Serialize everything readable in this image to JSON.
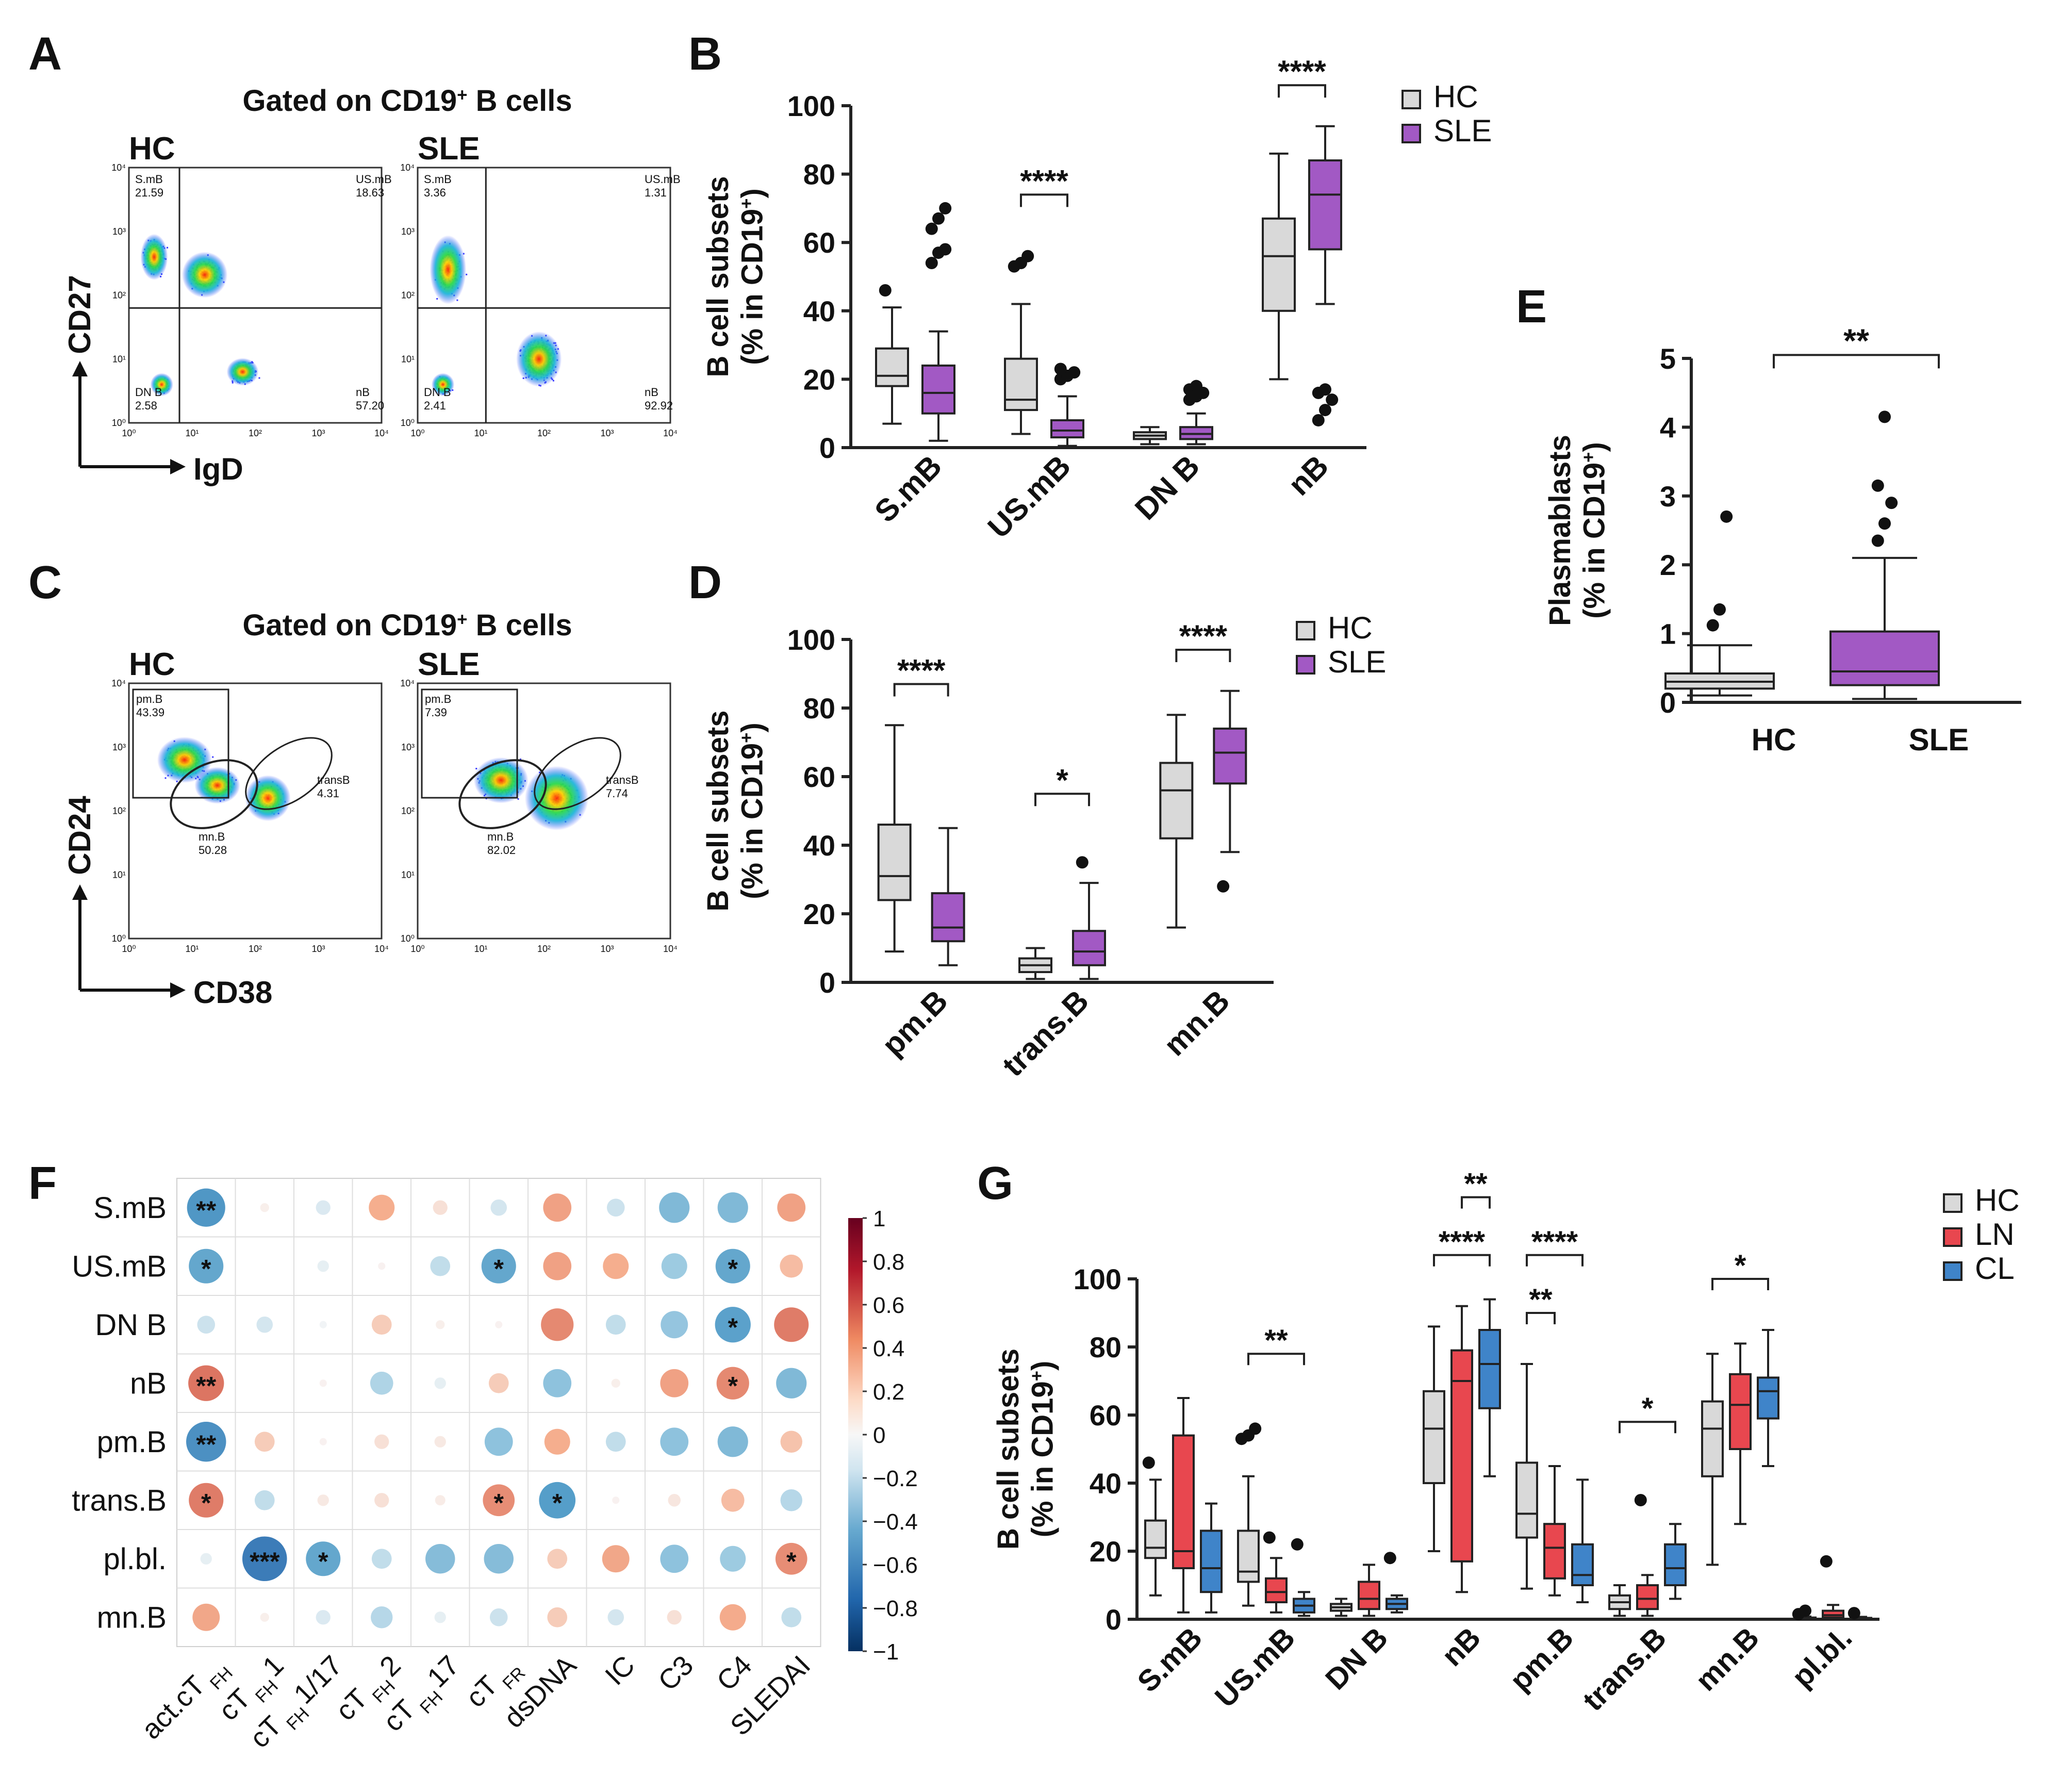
{
  "panel_letters": [
    "A",
    "B",
    "C",
    "D",
    "E",
    "F",
    "G"
  ],
  "colors": {
    "hc": "#d9d9d9",
    "sle": "#a259c4",
    "ln": "#e8474f",
    "cl": "#3f84c9",
    "axis": "#222222",
    "dot": "#111111"
  },
  "chart_data": [
    {
      "panel": "A",
      "type": "scatter",
      "title": "Gated on CD19",
      "title_sup": "+",
      "title_tail": " B cells",
      "xlabel": "IgD",
      "ylabel": "CD27",
      "ticks": [
        "10⁰",
        "10¹",
        "10²",
        "10³",
        "10⁴"
      ],
      "plots": [
        {
          "name": "HC",
          "quadrants": [
            {
              "label": "S.mB",
              "value": "21.59"
            },
            {
              "label": "US.mB",
              "value": "18.63"
            },
            {
              "label": "DN B",
              "value": "2.58"
            },
            {
              "label": "nB",
              "value": "57.20"
            }
          ]
        },
        {
          "name": "SLE",
          "quadrants": [
            {
              "label": "S.mB",
              "value": "3.36"
            },
            {
              "label": "US.mB",
              "value": "1.31"
            },
            {
              "label": "DN B",
              "value": "2.41"
            },
            {
              "label": "nB",
              "value": "92.92"
            }
          ]
        }
      ]
    },
    {
      "panel": "C",
      "type": "scatter",
      "title": "Gated on CD19",
      "title_sup": "+",
      "title_tail": " B cells",
      "xlabel": "CD38",
      "ylabel": "CD24",
      "ticks": [
        "10⁰",
        "10¹",
        "10²",
        "10³",
        "10⁴"
      ],
      "plots": [
        {
          "name": "HC",
          "gates": [
            {
              "label": "pm.B",
              "value": "43.39"
            },
            {
              "label": "transB",
              "value": "4.31"
            },
            {
              "label": "mn.B",
              "value": "50.28"
            }
          ]
        },
        {
          "name": "SLE",
          "gates": [
            {
              "label": "pm.B",
              "value": "7.39"
            },
            {
              "label": "transB",
              "value": "7.74"
            },
            {
              "label": "mn.B",
              "value": "82.02"
            }
          ]
        }
      ]
    },
    {
      "panel": "B",
      "type": "box",
      "ylabel": "B cell subsets",
      "ylabel2": "(% in CD19",
      "ylabel_sup": "+",
      "ylabel_tail": ")",
      "ylim": [
        0,
        100
      ],
      "yticks": [
        0,
        20,
        40,
        60,
        80,
        100
      ],
      "categories": [
        "S.mB",
        "US.mB",
        "DN B",
        "nB"
      ],
      "legend": [
        "HC",
        "SLE"
      ],
      "series": [
        {
          "name": "HC",
          "boxes": [
            {
              "min": 7,
              "q1": 18,
              "med": 21,
              "q3": 29,
              "max": 41,
              "out": [
                46
              ]
            },
            {
              "min": 4,
              "q1": 11,
              "med": 14,
              "q3": 26,
              "max": 42,
              "out": [
                53,
                54,
                56
              ]
            },
            {
              "min": 1,
              "q1": 2.5,
              "med": 3.5,
              "q3": 4.5,
              "max": 6,
              "out": []
            },
            {
              "min": 20,
              "q1": 40,
              "med": 56,
              "q3": 67,
              "max": 86,
              "out": []
            }
          ]
        },
        {
          "name": "SLE",
          "boxes": [
            {
              "min": 2,
              "q1": 10,
              "med": 16,
              "q3": 24,
              "max": 34,
              "out": [
                54,
                57,
                58,
                64,
                67,
                70
              ]
            },
            {
              "min": 0.5,
              "q1": 3,
              "med": 5,
              "q3": 8,
              "max": 15,
              "out": [
                20,
                21,
                22,
                23
              ]
            },
            {
              "min": 1,
              "q1": 2.5,
              "med": 4,
              "q3": 6,
              "max": 10,
              "out": [
                14,
                15,
                16,
                17,
                18
              ]
            },
            {
              "min": 42,
              "q1": 58,
              "med": 74,
              "q3": 84,
              "max": 94,
              "out": [
                8,
                11,
                14,
                16,
                17
              ]
            }
          ]
        }
      ],
      "brackets": [
        {
          "cat": 1,
          "label": "****",
          "y": 74
        },
        {
          "cat": 3,
          "label": "****",
          "y": 106
        }
      ]
    },
    {
      "panel": "D",
      "type": "box",
      "ylabel": "B cell subsets",
      "ylabel2": "(% in CD19",
      "ylabel_sup": "+",
      "ylabel_tail": ")",
      "ylim": [
        0,
        100
      ],
      "yticks": [
        0,
        20,
        40,
        60,
        80,
        100
      ],
      "categories": [
        "pm.B",
        "trans.B",
        "mn.B"
      ],
      "legend": [
        "HC",
        "SLE"
      ],
      "series": [
        {
          "name": "HC",
          "boxes": [
            {
              "min": 9,
              "q1": 24,
              "med": 31,
              "q3": 46,
              "max": 75,
              "out": []
            },
            {
              "min": 1,
              "q1": 3,
              "med": 5,
              "q3": 7,
              "max": 10,
              "out": []
            },
            {
              "min": 16,
              "q1": 42,
              "med": 56,
              "q3": 64,
              "max": 78,
              "out": []
            }
          ]
        },
        {
          "name": "SLE",
          "boxes": [
            {
              "min": 5,
              "q1": 12,
              "med": 16,
              "q3": 26,
              "max": 45,
              "out": []
            },
            {
              "min": 1,
              "q1": 5,
              "med": 9,
              "q3": 15,
              "max": 29,
              "out": [
                35
              ]
            },
            {
              "min": 38,
              "q1": 58,
              "med": 67,
              "q3": 74,
              "max": 85,
              "out": [
                28
              ]
            }
          ]
        }
      ],
      "brackets": [
        {
          "cat": 0,
          "label": "****",
          "y": 87
        },
        {
          "cat": 1,
          "label": "*",
          "y": 55
        },
        {
          "cat": 2,
          "label": "****",
          "y": 97
        }
      ]
    },
    {
      "panel": "E",
      "type": "box",
      "ylabel": "Plasmablasts",
      "ylabel2": "(% in CD19",
      "ylabel_sup": "+",
      "ylabel_tail": ")",
      "ylim": [
        0,
        5
      ],
      "yticks": [
        0,
        1,
        2,
        3,
        4,
        5
      ],
      "categories": [
        "HC",
        "SLE"
      ],
      "series": [
        {
          "name": "HC",
          "boxes": [
            {
              "min": 0.1,
              "q1": 0.2,
              "med": 0.3,
              "q3": 0.42,
              "max": 0.83,
              "out": [
                1.12,
                1.35,
                2.7
              ]
            }
          ]
        },
        {
          "name": "SLE",
          "boxes": [
            {
              "min": 0.05,
              "q1": 0.25,
              "med": 0.45,
              "q3": 1.03,
              "max": 2.1,
              "out": [
                2.35,
                2.6,
                2.9,
                3.15,
                4.15
              ]
            }
          ]
        }
      ],
      "brackets": [
        {
          "label": "**",
          "y": 5.05
        }
      ]
    },
    {
      "panel": "F",
      "type": "heatmap",
      "rows": [
        "S.mB",
        "US.mB",
        "DN B",
        "nB",
        "pm.B",
        "trans.B",
        "pl.bl.",
        "mn.B"
      ],
      "cols": [
        {
          "main": "act.cT",
          "sub": "FH",
          "tail": ""
        },
        {
          "main": "cT",
          "sub": "FH",
          "tail": "1"
        },
        {
          "main": "cT",
          "sub": "FH",
          "tail": "1/17"
        },
        {
          "main": "cT",
          "sub": "FH",
          "tail": "2"
        },
        {
          "main": "cT",
          "sub": "FH",
          "tail": "17"
        },
        {
          "main": "cT",
          "sub": "FR",
          "tail": ""
        },
        {
          "main": "dsDNA",
          "sub": "",
          "tail": ""
        },
        {
          "main": "IC",
          "sub": "",
          "tail": ""
        },
        {
          "main": "C3",
          "sub": "",
          "tail": ""
        },
        {
          "main": "C4",
          "sub": "",
          "tail": ""
        },
        {
          "main": "SLEDAI",
          "sub": "",
          "tail": ""
        }
      ],
      "values": [
        [
          -0.55,
          0.03,
          -0.08,
          0.25,
          0.08,
          -0.1,
          0.3,
          -0.12,
          -0.35,
          -0.35,
          0.3
        ],
        [
          -0.45,
          0,
          -0.05,
          0.02,
          -0.15,
          -0.45,
          0.3,
          0.25,
          -0.25,
          -0.45,
          0.2
        ],
        [
          -0.12,
          -0.1,
          -0.02,
          0.15,
          0.03,
          0.02,
          0.4,
          -0.15,
          -0.28,
          -0.48,
          0.45
        ],
        [
          0.48,
          0,
          0.02,
          -0.2,
          -0.05,
          0.15,
          -0.3,
          0.03,
          0.3,
          0.4,
          -0.35
        ],
        [
          -0.6,
          0.15,
          0.02,
          0.08,
          0.05,
          -0.3,
          0.25,
          -0.15,
          -0.3,
          -0.35,
          0.18
        ],
        [
          0.45,
          -0.15,
          0.05,
          0.08,
          0.04,
          0.38,
          -0.5,
          0.02,
          0.06,
          0.2,
          -0.18
        ],
        [
          -0.05,
          -0.75,
          -0.45,
          -0.15,
          -0.33,
          -0.33,
          0.15,
          0.28,
          -0.3,
          -0.25,
          0.38
        ],
        [
          0.28,
          0.03,
          -0.08,
          -0.18,
          -0.05,
          -0.12,
          0.15,
          -0.1,
          0.08,
          0.26,
          -0.15
        ]
      ],
      "stars": [
        [
          "**",
          "",
          "",
          "",
          "",
          "",
          "",
          "",
          "",
          "",
          ""
        ],
        [
          "*",
          "",
          "",
          "",
          "",
          "*",
          "",
          "",
          "",
          "*",
          ""
        ],
        [
          "",
          "",
          "",
          "",
          "",
          "",
          "",
          "",
          "",
          "*",
          ""
        ],
        [
          "**",
          "",
          "",
          "",
          "",
          "",
          "",
          "",
          "",
          "*",
          ""
        ],
        [
          "**",
          "",
          "",
          "",
          "",
          "",
          "",
          "",
          "",
          "",
          ""
        ],
        [
          "*",
          "",
          "",
          "",
          "",
          "*",
          "*",
          "",
          "",
          "",
          ""
        ],
        [
          "",
          "***",
          "*",
          "",
          "",
          "",
          "",
          "",
          "",
          "",
          "*"
        ],
        [
          "",
          "",
          "",
          "",
          "",
          "",
          "",
          "",
          "",
          "",
          ""
        ]
      ],
      "scale_ticks": [
        "1",
        "0.8",
        "0.6",
        "0.4",
        "0.2",
        "0",
        "−0.2",
        "−0.4",
        "−0.6",
        "−0.8",
        "−1"
      ]
    },
    {
      "panel": "G",
      "type": "box",
      "ylabel": "B cell subsets",
      "ylabel2": "(% in CD19",
      "ylabel_sup": "+",
      "ylabel_tail": ")",
      "ylim": [
        0,
        100
      ],
      "yticks": [
        0,
        20,
        40,
        60,
        80,
        100
      ],
      "categories": [
        "S.mB",
        "US.mB",
        "DN B",
        "nB",
        "pm.B",
        "trans.B",
        "mn.B",
        "pl.bl."
      ],
      "legend": [
        "HC",
        "LN",
        "CL"
      ],
      "series": [
        {
          "name": "HC",
          "boxes": [
            {
              "min": 7,
              "q1": 18,
              "med": 21,
              "q3": 29,
              "max": 41,
              "out": [
                46
              ]
            },
            {
              "min": 4,
              "q1": 11,
              "med": 14,
              "q3": 26,
              "max": 42,
              "out": [
                53,
                54,
                56
              ]
            },
            {
              "min": 1,
              "q1": 2.5,
              "med": 3.5,
              "q3": 4.5,
              "max": 6,
              "out": []
            },
            {
              "min": 20,
              "q1": 40,
              "med": 56,
              "q3": 67,
              "max": 86,
              "out": []
            },
            {
              "min": 9,
              "q1": 24,
              "med": 31,
              "q3": 46,
              "max": 75,
              "out": []
            },
            {
              "min": 1,
              "q1": 3,
              "med": 5,
              "q3": 7,
              "max": 10,
              "out": []
            },
            {
              "min": 16,
              "q1": 42,
              "med": 56,
              "q3": 64,
              "max": 78,
              "out": []
            },
            {
              "min": 0,
              "q1": 0.2,
              "med": 0.3,
              "q3": 0.5,
              "max": 0.8,
              "out": [
                1.5,
                2.5
              ]
            }
          ]
        },
        {
          "name": "LN",
          "boxes": [
            {
              "min": 2,
              "q1": 15,
              "med": 20,
              "q3": 54,
              "max": 65,
              "out": []
            },
            {
              "min": 2,
              "q1": 5,
              "med": 8,
              "q3": 12,
              "max": 18,
              "out": [
                24
              ]
            },
            {
              "min": 1,
              "q1": 3,
              "med": 6,
              "q3": 11,
              "max": 16,
              "out": []
            },
            {
              "min": 8,
              "q1": 17,
              "med": 70,
              "q3": 79,
              "max": 92,
              "out": []
            },
            {
              "min": 7,
              "q1": 12,
              "med": 21,
              "q3": 28,
              "max": 45,
              "out": []
            },
            {
              "min": 1,
              "q1": 3,
              "med": 6,
              "q3": 10,
              "max": 13,
              "out": [
                35
              ]
            },
            {
              "min": 28,
              "q1": 50,
              "med": 63,
              "q3": 72,
              "max": 81,
              "out": []
            },
            {
              "min": 0,
              "q1": 0.5,
              "med": 1.2,
              "q3": 2.5,
              "max": 4.2,
              "out": [
                17
              ]
            }
          ]
        },
        {
          "name": "CL",
          "boxes": [
            {
              "min": 2,
              "q1": 8,
              "med": 15,
              "q3": 26,
              "max": 34,
              "out": []
            },
            {
              "min": 1,
              "q1": 2,
              "med": 4,
              "q3": 6,
              "max": 8,
              "out": [
                22
              ]
            },
            {
              "min": 2,
              "q1": 3,
              "med": 4.5,
              "q3": 6,
              "max": 7,
              "out": [
                18
              ]
            },
            {
              "min": 42,
              "q1": 62,
              "med": 75,
              "q3": 85,
              "max": 94,
              "out": []
            },
            {
              "min": 5,
              "q1": 10,
              "med": 13,
              "q3": 22,
              "max": 41,
              "out": []
            },
            {
              "min": 6,
              "q1": 10,
              "med": 15,
              "q3": 22,
              "max": 28,
              "out": []
            },
            {
              "min": 45,
              "q1": 59,
              "med": 67,
              "q3": 71,
              "max": 85,
              "out": []
            },
            {
              "min": 0,
              "q1": 0.1,
              "med": 0.2,
              "q3": 0.4,
              "max": 0.7,
              "out": [
                1.8
              ]
            }
          ]
        }
      ],
      "brackets": [
        {
          "cat": 1,
          "from": 0,
          "to": 2,
          "label": "**",
          "y": 78
        },
        {
          "cat": 3,
          "from": 1,
          "to": 2,
          "label": "**",
          "y": 124
        },
        {
          "cat": 3,
          "from": 0,
          "to": 2,
          "label": "****",
          "y": 107
        },
        {
          "cat": 4,
          "from": 0,
          "to": 1,
          "label": "**",
          "y": 90
        },
        {
          "cat": 4,
          "from": 0,
          "to": 2,
          "label": "****",
          "y": 107
        },
        {
          "cat": 5,
          "from": 0,
          "to": 2,
          "label": "*",
          "y": 58
        },
        {
          "cat": 6,
          "from": 0,
          "to": 2,
          "label": "*",
          "y": 100
        }
      ]
    }
  ]
}
